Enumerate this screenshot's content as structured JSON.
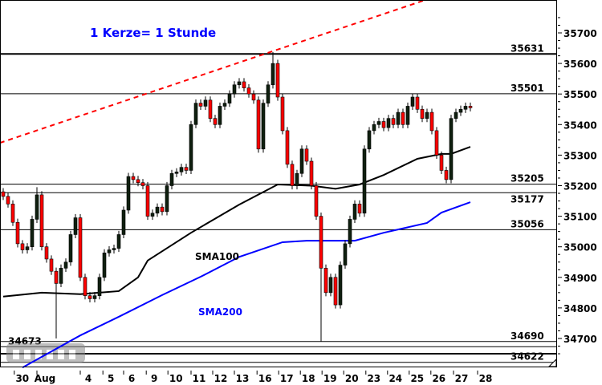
{
  "chart_data": {
    "type": "candlestick",
    "annotation": "1 Kerze= 1 Stunde",
    "ylim": [
      34600,
      35800
    ],
    "yticks": [
      35700,
      35600,
      35500,
      35400,
      35300,
      35200,
      35100,
      35000,
      34900,
      34800,
      34700
    ],
    "xtick_labels": [
      "30",
      "Aug",
      "4",
      "5",
      "6",
      "9",
      "10",
      "11",
      "12",
      "13",
      "16",
      "17",
      "18",
      "19",
      "20",
      "23",
      "24",
      "25",
      "26",
      "27",
      "28"
    ],
    "xtick_candle_index": [
      2.3,
      7,
      16,
      20.7,
      25,
      29.7,
      34.2,
      39,
      43.5,
      48,
      52.7,
      57.2,
      61.7,
      66.2,
      70.7,
      75.3,
      79.8,
      84.3,
      88.8,
      93.5,
      98.5
    ],
    "closes": [
      35165,
      35140,
      35080,
      35010,
      34990,
      35000,
      35090,
      35170,
      35000,
      34960,
      34920,
      34880,
      34930,
      34950,
      35040,
      35095,
      34900,
      34840,
      34830,
      34840,
      34900,
      34980,
      34990,
      34995,
      35040,
      35120,
      35230,
      35220,
      35210,
      35200,
      35100,
      35110,
      35130,
      35115,
      35200,
      35240,
      35245,
      35260,
      35250,
      35400,
      35470,
      35460,
      35480,
      35420,
      35400,
      35460,
      35470,
      35500,
      35530,
      35540,
      35520,
      35500,
      35480,
      35320,
      35470,
      35530,
      35600,
      35490,
      35380,
      35270,
      35200,
      35240,
      35320,
      35280,
      35200,
      35100,
      34930,
      34850,
      34900,
      34810,
      34940,
      35010,
      35090,
      35140,
      35110,
      35320,
      35380,
      35400,
      35410,
      35390,
      35420,
      35400,
      35440,
      35400,
      35460,
      35490,
      35450,
      35420,
      35440,
      35380,
      35300,
      35250,
      35220,
      35420,
      35440,
      35450,
      35460,
      35455
    ],
    "extremes": [
      {
        "index": 56,
        "high": 35637
      },
      {
        "index": 66,
        "low": 34690
      },
      {
        "index": 7,
        "high": 35195
      },
      {
        "index": 11,
        "low": 34700
      }
    ],
    "series": [
      {
        "name": "SMA100",
        "color": "#000000",
        "points": [
          [
            0,
            34837
          ],
          [
            8,
            34850
          ],
          [
            16,
            34845
          ],
          [
            24,
            34855
          ],
          [
            28,
            34900
          ],
          [
            30,
            34955
          ],
          [
            39,
            35046
          ],
          [
            49,
            35138
          ],
          [
            57,
            35204
          ],
          [
            64,
            35200
          ],
          [
            69,
            35190
          ],
          [
            74,
            35204
          ],
          [
            79,
            35235
          ],
          [
            86,
            35288
          ],
          [
            91,
            35304
          ],
          [
            93,
            35304
          ],
          [
            97,
            35327
          ]
        ]
      },
      {
        "name": "SMA200",
        "color": "#0000ff",
        "points": [
          [
            4,
            34605
          ],
          [
            16,
            34710
          ],
          [
            24,
            34771
          ],
          [
            33,
            34842
          ],
          [
            41,
            34902
          ],
          [
            49,
            34967
          ],
          [
            58,
            35015
          ],
          [
            63,
            35020
          ],
          [
            73,
            35020
          ],
          [
            79,
            35046
          ],
          [
            88,
            35078
          ],
          [
            91,
            35112
          ],
          [
            97,
            35146
          ]
        ]
      }
    ],
    "trendline": {
      "color": "#ff0000",
      "style": "dashed",
      "points": [
        [
          -0.7,
          35340
        ],
        [
          87.7,
          35808
        ]
      ]
    },
    "levels": [
      {
        "value": 35631,
        "label": "35631",
        "thick": true
      },
      {
        "value": 35501,
        "label": "35501"
      },
      {
        "value": 35205,
        "label": "35205"
      },
      {
        "value": 35177,
        "label": "35177"
      },
      {
        "value": 35056,
        "label": "35056"
      },
      {
        "value": 34690,
        "label": "34690"
      },
      {
        "value": 34673,
        "label": "34673",
        "label_side": "left"
      },
      {
        "value": 34650,
        "label": "",
        "thick": true
      },
      {
        "value": 34622,
        "label": "34622"
      }
    ],
    "colors": {
      "up": "#000000",
      "down": "#ff0000",
      "annotation": "#0000ff"
    }
  },
  "watermark": "boerse online"
}
